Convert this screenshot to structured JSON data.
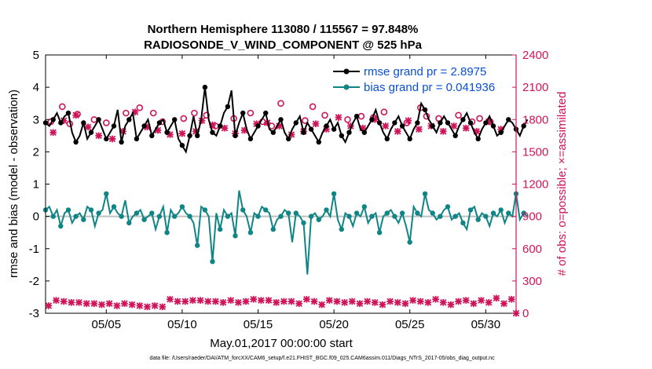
{
  "colors": {
    "rmse": "#000000",
    "bias": "#0f8585",
    "obs": "#d0145a",
    "legend_text": "#0a4fd6",
    "zero_line": "#bfbfbf"
  },
  "chart_data": {
    "type": "line",
    "title": "Northern Hemisphere 113080 / 115567 = 97.848%",
    "subtitle": "RADIOSONDE_V_WIND_COMPONENT @ 525 hPa",
    "xlabel": "May.01,2017 00:00:00 start",
    "ylabel": "rmse and bias (model - observation)",
    "y2label": "# of obs: o=possible; ×=assimilated",
    "xlim": [
      1,
      32
    ],
    "ylim": [
      -3,
      5
    ],
    "y2lim": [
      0,
      2400
    ],
    "x_ticks": [
      5,
      10,
      15,
      20,
      25,
      30
    ],
    "x_tick_labels": [
      "05/05",
      "05/10",
      "05/15",
      "05/20",
      "05/25",
      "05/30"
    ],
    "y_ticks": [
      "-3",
      "-2",
      "-1",
      "0",
      "1",
      "2",
      "3",
      "4",
      "5"
    ],
    "y2_ticks": [
      "0",
      "300",
      "600",
      "900",
      "1200",
      "1500",
      "1800",
      "2100",
      "2400"
    ],
    "legend": [
      "rmse grand pr = 2.8975",
      "bias grand pr = 0.041936"
    ],
    "footnote": "data file: /Users/raeder/DAI/ATM_forcXX/CAM6_setup/f.e21.FHIST_BGC.f09_025.CAM6assim.011/Diags_NTrS_2017-05/obs_diag_output.nc",
    "series": [
      {
        "name": "rmse",
        "axis": "left",
        "start_day": 1.0,
        "step_days": 0.25,
        "values": [
          2.9,
          2.8,
          3.0,
          3.2,
          2.9,
          3.1,
          3.2,
          2.6,
          2.3,
          2.5,
          2.9,
          2.4,
          2.6,
          2.8,
          3.0,
          2.7,
          2.4,
          2.6,
          2.8,
          3.3,
          2.3,
          2.8,
          3.0,
          3.2,
          2.4,
          2.6,
          2.8,
          3.0,
          2.5,
          2.7,
          2.9,
          3.0,
          2.6,
          2.8,
          3.0,
          2.4,
          2.2,
          2.0,
          2.5,
          3.1,
          2.5,
          3.0,
          4.0,
          3.0,
          2.6,
          2.5,
          2.8,
          3.2,
          3.4,
          3.9,
          2.5,
          2.9,
          3.2,
          2.7,
          2.4,
          2.6,
          2.8,
          3.0,
          3.2,
          2.7,
          2.6,
          2.8,
          3.0,
          2.6,
          2.4,
          2.7,
          2.9,
          3.1,
          2.6,
          2.9,
          2.7,
          2.5,
          2.3,
          2.6,
          2.8,
          3.0,
          2.7,
          2.9,
          2.5,
          2.3,
          2.6,
          2.9,
          3.1,
          2.7,
          2.6,
          2.8,
          3.0,
          3.3,
          2.9,
          2.6,
          2.4,
          2.7,
          2.9,
          3.1,
          2.8,
          2.6,
          2.4,
          2.7,
          2.9,
          3.5,
          3.3,
          3.0,
          2.8,
          2.6,
          2.9,
          3.1,
          2.9,
          2.7,
          2.5,
          2.8,
          3.0,
          3.2,
          2.9,
          2.6,
          2.4,
          2.7,
          2.9,
          3.1,
          2.8,
          2.5,
          2.6,
          2.8,
          3.0,
          2.9,
          2.7,
          2.5,
          2.8,
          3.0
        ],
        "show_every": 2
      },
      {
        "name": "bias",
        "axis": "left",
        "start_day": 1.0,
        "step_days": 0.25,
        "values": [
          0.2,
          0.3,
          0.0,
          0.2,
          -0.3,
          0.1,
          0.2,
          -0.2,
          0.0,
          0.1,
          -0.1,
          0.3,
          0.2,
          -0.3,
          0.1,
          0.2,
          0.7,
          0.1,
          0.3,
          0.1,
          0.0,
          0.5,
          -0.2,
          0.0,
          0.1,
          0.2,
          -0.1,
          0.0,
          0.1,
          -0.4,
          0.0,
          0.3,
          -0.5,
          0.2,
          0.0,
          0.1,
          0.3,
          0.1,
          0.0,
          -0.2,
          -0.9,
          0.3,
          0.2,
          0.0,
          -1.4,
          0.1,
          -0.4,
          0.2,
          0.0,
          0.1,
          -0.6,
          0.8,
          0.2,
          0.0,
          -0.5,
          0.1,
          0.0,
          0.3,
          0.2,
          0.1,
          -0.4,
          -0.1,
          0.0,
          0.2,
          0.1,
          -0.8,
          0.1,
          0.0,
          -0.2,
          -1.8,
          0.0,
          0.1,
          -0.1,
          0.0,
          0.2,
          0.0,
          0.7,
          -0.1,
          -0.4,
          0.1,
          0.0,
          -0.3,
          0.1,
          0.0,
          0.3,
          -0.2,
          0.0,
          0.1,
          -0.5,
          0.0,
          0.1,
          0.2,
          0.0,
          -0.2,
          0.1,
          -0.3,
          -0.8,
          0.3,
          0.1,
          0.0,
          0.7,
          0.2,
          0.1,
          -0.1,
          0.0,
          0.2,
          0.3,
          -0.1,
          0.0,
          0.1,
          -0.2,
          -0.4,
          0.2,
          0.3,
          -0.1,
          0.1,
          0.0,
          -0.3,
          0.1,
          0.0,
          0.2,
          -0.2,
          0.1,
          0.0,
          0.7,
          -0.1,
          0.1,
          0.0
        ],
        "show_every": 2
      },
      {
        "name": "obs_possible",
        "axis": "right",
        "marker": "o",
        "x": [
          1.35,
          2.1,
          2.6,
          3.1,
          4.2,
          5.0,
          6.3,
          7.2,
          8.1,
          8.7,
          10.1,
          10.8,
          11.6,
          12.2,
          13.4,
          14.5,
          15.3,
          15.9,
          16.5,
          18.1,
          18.6,
          19.4,
          20.9,
          21.8,
          22.6,
          23.3,
          24.8,
          25.7,
          26.1,
          26.9,
          28.2,
          29.1,
          29.6,
          30.3
        ],
        "y": [
          1780,
          1920,
          1760,
          1850,
          1800,
          1770,
          1860,
          1910,
          1860,
          1780,
          1810,
          1860,
          1840,
          1740,
          1810,
          1860,
          1780,
          1740,
          1950,
          1790,
          1920,
          1840,
          1800,
          1830,
          1820,
          1870,
          1770,
          1910,
          1830,
          1810,
          1840,
          1780,
          1810,
          1780
        ]
      },
      {
        "name": "obs_assimilated",
        "axis": "right",
        "marker": "x",
        "x": [
          1.5,
          2.2,
          3.0,
          3.8,
          4.5,
          5.4,
          6.1,
          6.9,
          7.7,
          8.4,
          9.2,
          10.0,
          10.9,
          11.3,
          12.0,
          12.8,
          13.5,
          14.1,
          14.9,
          15.6,
          16.4,
          17.2,
          18.0,
          18.8,
          19.5,
          20.3,
          21.1,
          21.9,
          22.7,
          23.4,
          24.2,
          24.9,
          25.6,
          26.4,
          27.2,
          27.9,
          28.7,
          29.4,
          30.2,
          31.0
        ],
        "y": [
          1680,
          1790,
          1840,
          1730,
          1650,
          1620,
          1690,
          1870,
          1730,
          1700,
          1660,
          1670,
          1690,
          1790,
          1750,
          1720,
          1670,
          1700,
          1760,
          1770,
          1740,
          1660,
          1690,
          1760,
          1710,
          1820,
          1740,
          1720,
          1800,
          1740,
          1690,
          1790,
          1710,
          1740,
          1690,
          1740,
          1720,
          1690,
          1780,
          1710
        ]
      },
      {
        "name": "obs_bottom",
        "axis": "right",
        "marker": "x",
        "x": [
          1.2,
          1.7,
          2.2,
          2.7,
          3.2,
          3.7,
          4.2,
          4.7,
          5.2,
          5.7,
          6.2,
          6.7,
          7.2,
          7.7,
          8.2,
          8.7,
          9.2,
          9.7,
          10.2,
          10.7,
          11.2,
          11.7,
          12.2,
          12.7,
          13.2,
          13.7,
          14.2,
          14.7,
          15.2,
          15.7,
          16.2,
          16.7,
          17.2,
          17.7,
          18.2,
          18.7,
          19.2,
          19.7,
          20.2,
          20.7,
          21.2,
          21.7,
          22.2,
          22.7,
          23.2,
          23.7,
          24.2,
          24.7,
          25.2,
          25.7,
          26.2,
          26.7,
          27.2,
          27.7,
          28.2,
          28.7,
          29.2,
          29.7,
          30.2,
          30.7,
          31.2,
          31.7,
          32.0
        ],
        "y": [
          70,
          120,
          110,
          100,
          100,
          90,
          90,
          80,
          90,
          70,
          90,
          80,
          70,
          60,
          70,
          60,
          130,
          110,
          110,
          120,
          120,
          110,
          110,
          100,
          120,
          100,
          110,
          130,
          120,
          120,
          100,
          110,
          110,
          90,
          130,
          110,
          80,
          120,
          110,
          100,
          110,
          90,
          110,
          100,
          80,
          110,
          100,
          90,
          120,
          110,
          100,
          130,
          100,
          80,
          110,
          120,
          90,
          120,
          100,
          140,
          90,
          130,
          0
        ]
      }
    ]
  }
}
